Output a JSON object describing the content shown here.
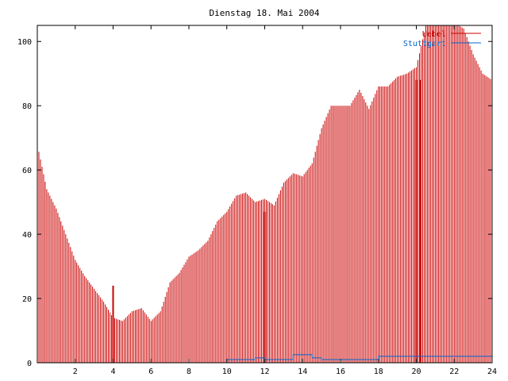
{
  "chart_data": {
    "type": "bar",
    "title": "Dienstag 18. Mai 2004",
    "xlabel": "",
    "ylabel": "",
    "xlim": [
      0,
      24
    ],
    "ylim": [
      0,
      105
    ],
    "x_ticks": [
      2,
      4,
      6,
      8,
      10,
      12,
      14,
      16,
      18,
      20,
      22,
      24
    ],
    "y_ticks": [
      0,
      20,
      40,
      60,
      80,
      100
    ],
    "grid": false,
    "legend_position": "top-right",
    "samples_per_hour": 12,
    "series": [
      {
        "name": "Uebel",
        "color": "#cc0000",
        "style": "impulses",
        "hourly_profile": [
          68,
          54,
          48,
          40,
          32,
          27,
          23,
          19,
          14,
          13,
          16,
          17,
          13,
          16,
          25,
          28,
          33,
          35,
          38,
          44,
          47,
          52,
          53,
          50,
          51,
          49,
          56,
          59,
          58,
          62,
          73,
          80,
          80,
          80,
          85,
          79,
          86,
          86,
          89,
          90,
          92,
          105,
          106,
          106,
          106,
          104,
          96,
          90,
          88
        ]
      },
      {
        "name": "Stuttgart",
        "color": "#0066cc",
        "style": "line",
        "segments": [
          {
            "x0": 0,
            "x1": 10,
            "y": 0
          },
          {
            "x0": 10,
            "x1": 11.5,
            "y": 1
          },
          {
            "x0": 11.5,
            "x1": 12,
            "y": 1.5
          },
          {
            "x0": 12,
            "x1": 13.5,
            "y": 1
          },
          {
            "x0": 13.5,
            "x1": 14.5,
            "y": 2.5
          },
          {
            "x0": 14.5,
            "x1": 15,
            "y": 1.5
          },
          {
            "x0": 15,
            "x1": 18,
            "y": 1
          },
          {
            "x0": 18,
            "x1": 24,
            "y": 2
          }
        ]
      }
    ],
    "annotations": [
      {
        "x": 4.0,
        "y": 24
      },
      {
        "x": 12.0,
        "y": 47
      },
      {
        "x": 20.0,
        "y": 88
      },
      {
        "x": 20.2,
        "y": 88
      }
    ]
  }
}
